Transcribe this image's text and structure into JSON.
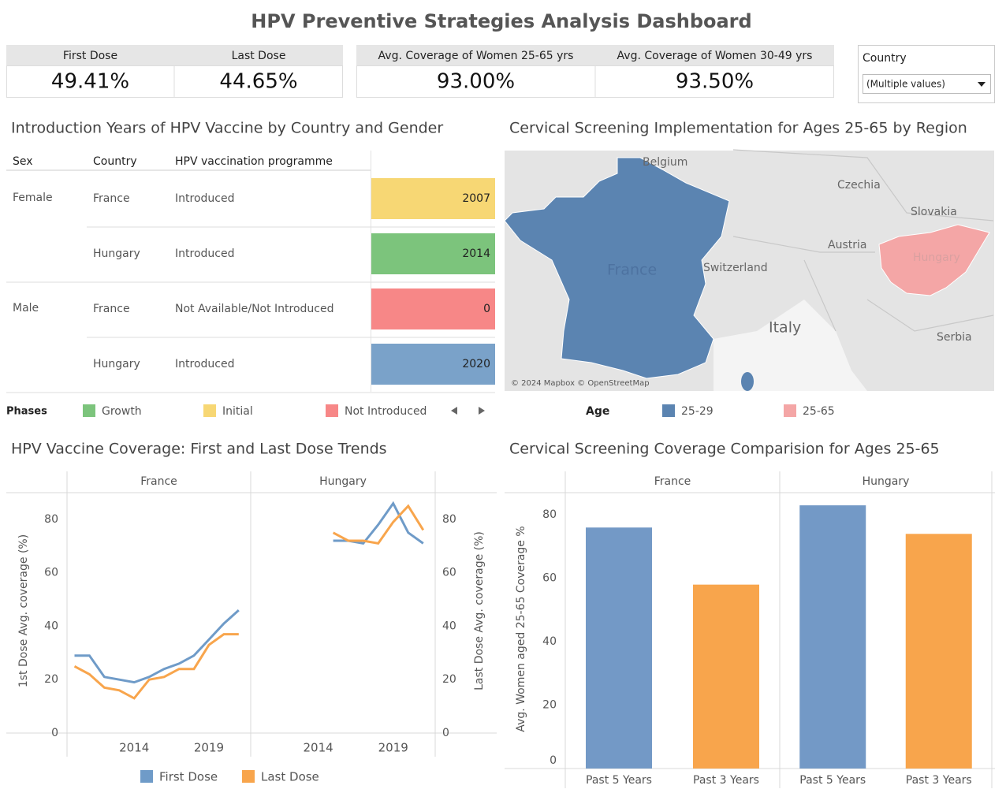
{
  "title": "HPV Preventive Strategies Analysis Dashboard",
  "kpis": [
    {
      "label": "First Dose",
      "value": "49.41%"
    },
    {
      "label": "Last Dose",
      "value": "44.65%"
    },
    {
      "label": "Avg. Coverage of Women 25-65 yrs",
      "value": "93.00%"
    },
    {
      "label": "Avg. Coverage of Women 30-49 yrs",
      "value": "93.50%"
    }
  ],
  "filter": {
    "label": "Country",
    "value": "(Multiple values)"
  },
  "table": {
    "title": "Introduction Years of HPV Vaccine by Country and Gender",
    "columns": [
      "Sex",
      "Country",
      "HPV vaccination programme"
    ],
    "groups": [
      {
        "sex": "Female",
        "rows": [
          {
            "country": "France",
            "programme": "Introduced",
            "year": 2007,
            "color": "#f7d774"
          },
          {
            "country": "Hungary",
            "programme": "Introduced",
            "year": 2014,
            "color": "#7cc47c"
          }
        ]
      },
      {
        "sex": "Male",
        "rows": [
          {
            "country": "France",
            "programme": "Not Available/Not Introduced",
            "year": 0,
            "color": "#f78787"
          },
          {
            "country": "Hungary",
            "programme": "Introduced",
            "year": 2020,
            "color": "#7aa2c9"
          }
        ]
      }
    ],
    "legend": {
      "title": "Phases",
      "items": [
        {
          "name": "Growth",
          "color": "#7cc47c"
        },
        {
          "name": "Initial",
          "color": "#f7d774"
        },
        {
          "name": "Not Introduced",
          "color": "#f78787"
        }
      ]
    }
  },
  "map": {
    "title": "Cervical Screening Implementation for Ages 25-65 by Region",
    "labels": [
      "Belgium",
      "Czechia",
      "Slovakia",
      "Austria",
      "Hungary",
      "France",
      "Switzerland",
      "Italy",
      "Serbia"
    ],
    "attribution": "© 2024 Mapbox © OpenStreetMap",
    "legend": {
      "title": "Age",
      "items": [
        {
          "name": "25-29",
          "color": "#5b84b1"
        },
        {
          "name": "25-65",
          "color": "#f4a6a6"
        }
      ]
    }
  },
  "chart_data": [
    {
      "type": "line",
      "title": "HPV Vaccine Coverage: First and Last Dose Trends",
      "facets": [
        "France",
        "Hungary"
      ],
      "x": [
        2010,
        2011,
        2012,
        2013,
        2014,
        2015,
        2016,
        2017,
        2018,
        2019,
        2020,
        2021
      ],
      "xlim": [
        2009.5,
        2021.8
      ],
      "xticks": [
        2014,
        2019
      ],
      "y_label": "1st Dose Avg. coverage (%)",
      "y2_label": "Last Dose Avg. coverage (%)",
      "ylim": [
        0,
        90
      ],
      "yticks": [
        0,
        20,
        40,
        60,
        80
      ],
      "y2lim": [
        0,
        90
      ],
      "y2ticks": [
        0,
        20,
        40,
        60,
        80
      ],
      "series": [
        {
          "name": "First Dose",
          "color": "#6f9bc8",
          "axis": "y",
          "values": [
            [
              29,
              29,
              21,
              20,
              19,
              21,
              24,
              26,
              29,
              35,
              41,
              46
            ],
            [
              null,
              null,
              null,
              null,
              null,
              72,
              72,
              71,
              78,
              86,
              75,
              71
            ]
          ]
        },
        {
          "name": "Last Dose",
          "color": "#f8a54c",
          "axis": "y2",
          "values": [
            [
              25,
              22,
              17,
              16,
              13,
              20,
              21,
              24,
              24,
              33,
              37,
              37
            ],
            [
              null,
              null,
              null,
              null,
              null,
              75,
              72,
              72,
              71,
              79,
              85,
              76
            ]
          ]
        }
      ]
    },
    {
      "type": "bar",
      "title": "Cervical Screening Coverage Comparision for Ages 25-65",
      "facets": [
        "France",
        "Hungary"
      ],
      "categories": [
        "Past 5 Years",
        "Past 3 Years"
      ],
      "colors": [
        "#7399c6",
        "#f8a54c"
      ],
      "y_label": "Avg. Women aged 25-65 Coverage %",
      "ylim": [
        0,
        87
      ],
      "yticks": [
        0,
        20,
        40,
        60,
        80
      ],
      "values": [
        [
          76,
          58
        ],
        [
          83,
          74
        ]
      ]
    }
  ]
}
